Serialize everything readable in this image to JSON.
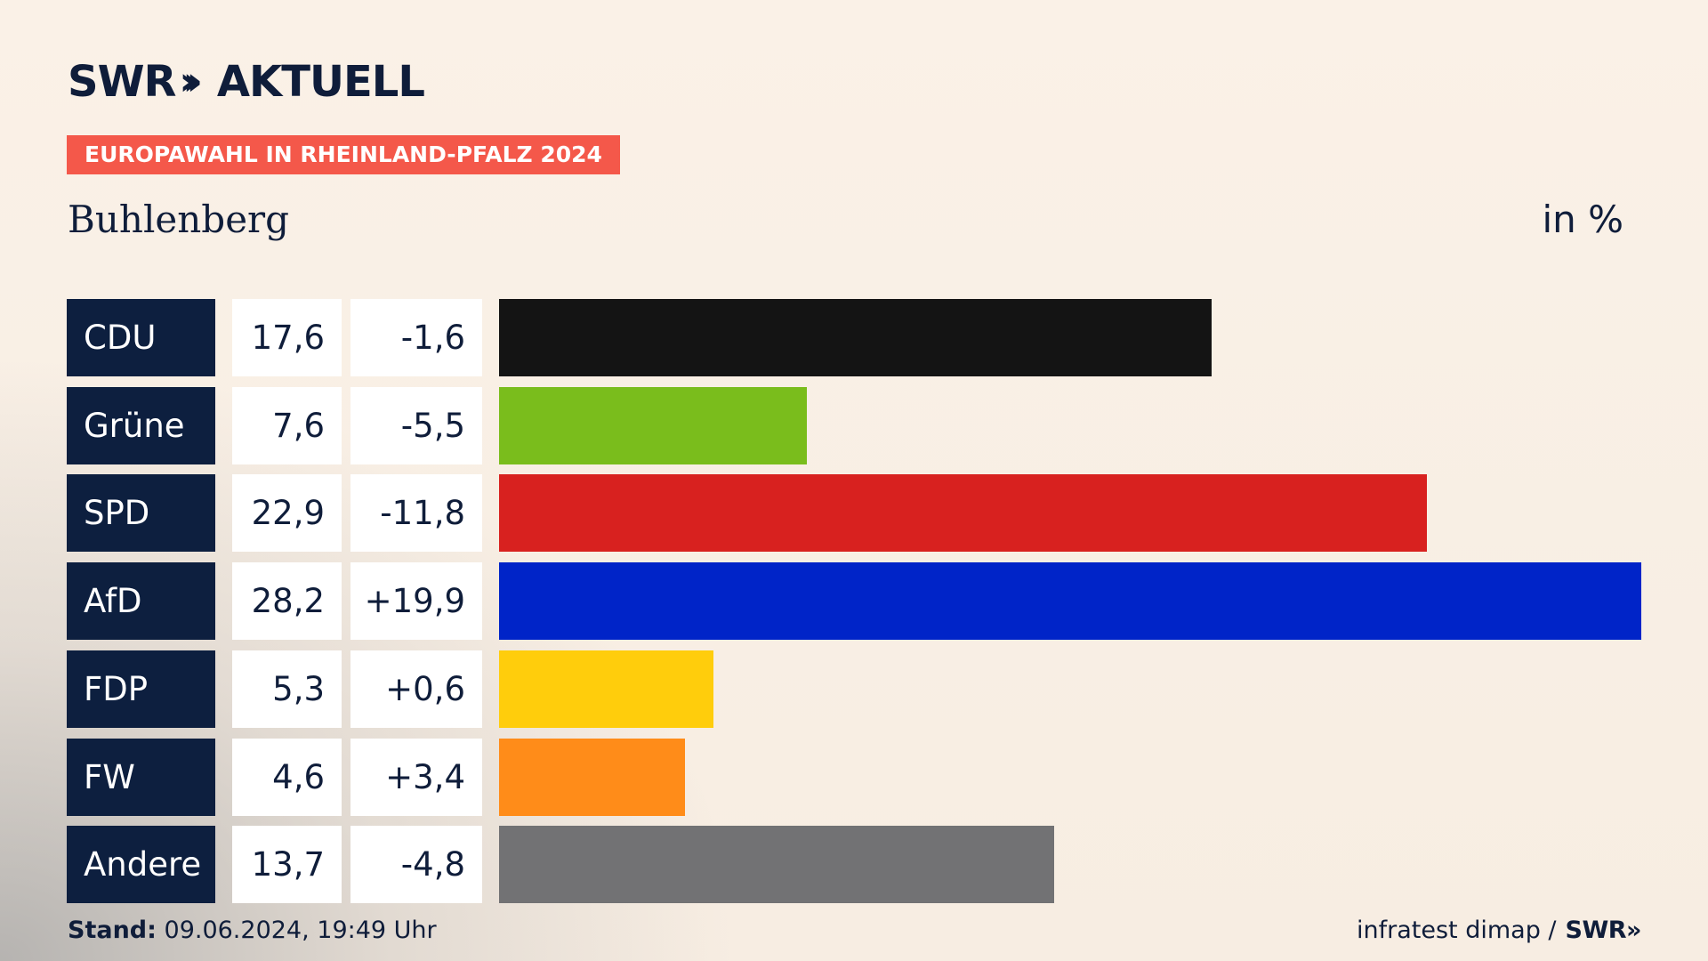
{
  "header": {
    "logo_text": "SWR",
    "logo_chevrons": "»",
    "logo_suffix": "AKTUELL",
    "banner": "EUROPAWAHL IN RHEINLAND-PFALZ 2024",
    "location": "Buhlenberg",
    "unit": "in %"
  },
  "chart_data": {
    "type": "bar",
    "title": "Europawahl in Rheinland-Pfalz 2024",
    "subtitle": "Buhlenberg",
    "ylabel": "in %",
    "orientation": "horizontal",
    "xlim": [
      0,
      28.2
    ],
    "categories": [
      "CDU",
      "Grüne",
      "SPD",
      "AfD",
      "FDP",
      "FW",
      "Andere"
    ],
    "values": [
      17.6,
      7.6,
      22.9,
      28.2,
      5.3,
      4.6,
      13.7
    ],
    "value_labels": [
      "17,6",
      "7,6",
      "22,9",
      "28,2",
      "5,3",
      "4,6",
      "13,7"
    ],
    "changes": [
      -1.6,
      -5.5,
      -11.8,
      19.9,
      0.6,
      3.4,
      -4.8
    ],
    "change_labels": [
      "-1,6",
      "-5,5",
      "-11,8",
      "+19,9",
      "+0,6",
      "+3,4",
      "-4,8"
    ],
    "colors": [
      "#141414",
      "#7abd1c",
      "#d8211f",
      "#0024c8",
      "#ffcd0c",
      "#ff8c19",
      "#727274"
    ]
  },
  "footer": {
    "stand_label": "Stand:",
    "stand_value": "09.06.2024, 19:49 Uhr",
    "source": "infratest dimap /",
    "source_logo": "SWR»"
  }
}
